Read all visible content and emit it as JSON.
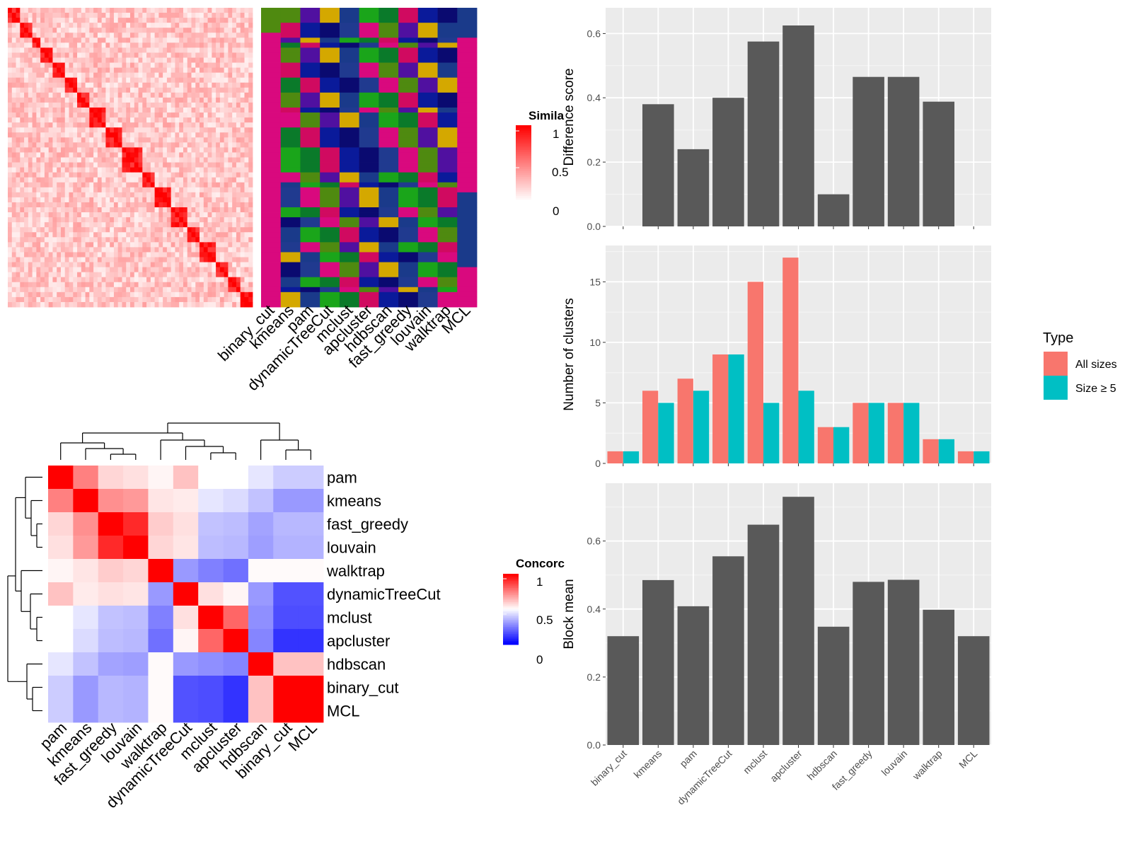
{
  "methods": [
    "binary_cut",
    "kmeans",
    "pam",
    "dynamicTreeCut",
    "mclust",
    "apcluster",
    "hdbscan",
    "fast_greedy",
    "louvain",
    "walktrap",
    "MCL"
  ],
  "similarity_legend": {
    "title": "Simila",
    "ticks": [
      "1",
      "0.5",
      "0"
    ]
  },
  "concordance_legend": {
    "title": "Concorc",
    "ticks": [
      "1",
      "0.5",
      "0"
    ]
  },
  "type_legend": {
    "title": "Type",
    "items": [
      {
        "label": "All sizes",
        "color": "#F8766D"
      },
      {
        "label": "Size ≥ 5",
        "color": "#00BFC4"
      }
    ]
  },
  "colors": {
    "bar": "#595959",
    "panel": "#ebebeb",
    "grid": "#ffffff",
    "all_sizes": "#F8766D",
    "size_ge5": "#00BFC4",
    "magenta": "#d9097e",
    "navy": "#1a3a8a",
    "green": "#4f8a10"
  },
  "chart_data": [
    {
      "type": "heatmap",
      "name": "similarity-heatmap",
      "n_rows": 60,
      "n_cols": 60,
      "diagonal_value": 1,
      "value_range": [
        0,
        1
      ]
    },
    {
      "type": "heatmap",
      "name": "cluster-assignment-heatmap",
      "columns": [
        "binary_cut",
        "kmeans",
        "pam",
        "dynamicTreeCut",
        "mclust",
        "apcluster",
        "hdbscan",
        "fast_greedy",
        "louvain",
        "walktrap",
        "MCL"
      ],
      "n_rows": 60
    },
    {
      "type": "bar",
      "name": "difference-score",
      "categories": [
        "binary_cut",
        "kmeans",
        "pam",
        "dynamicTreeCut",
        "mclust",
        "apcluster",
        "hdbscan",
        "fast_greedy",
        "louvain",
        "walktrap",
        "MCL"
      ],
      "values": [
        0,
        0.38,
        0.24,
        0.4,
        0.575,
        0.625,
        0.1,
        0.465,
        0.465,
        0.388,
        0
      ],
      "ylabel": "Difference score",
      "ylim": [
        0,
        0.68
      ],
      "yticks": [
        0,
        0.2,
        0.4,
        0.6
      ],
      "yticklabels": [
        "0.0",
        "0.2",
        "0.4",
        "0.6"
      ]
    },
    {
      "type": "bar",
      "name": "number-of-clusters",
      "categories": [
        "binary_cut",
        "kmeans",
        "pam",
        "dynamicTreeCut",
        "mclust",
        "apcluster",
        "hdbscan",
        "fast_greedy",
        "louvain",
        "walktrap",
        "MCL"
      ],
      "series": [
        {
          "name": "All sizes",
          "values": [
            1,
            6,
            7,
            9,
            15,
            17,
            3,
            5,
            5,
            2,
            1
          ]
        },
        {
          "name": "Size ≥ 5",
          "values": [
            1,
            5,
            6,
            9,
            5,
            6,
            3,
            5,
            5,
            2,
            1
          ]
        }
      ],
      "ylabel": "Number of clusters",
      "ylim": [
        0,
        18
      ],
      "yticks": [
        0,
        5,
        10,
        15
      ],
      "yticklabels": [
        "0",
        "5",
        "10",
        "15"
      ]
    },
    {
      "type": "bar",
      "name": "block-mean",
      "categories": [
        "binary_cut",
        "kmeans",
        "pam",
        "dynamicTreeCut",
        "mclust",
        "apcluster",
        "hdbscan",
        "fast_greedy",
        "louvain",
        "walktrap",
        "MCL"
      ],
      "values": [
        0.32,
        0.485,
        0.408,
        0.555,
        0.648,
        0.73,
        0.348,
        0.48,
        0.486,
        0.398,
        0.32
      ],
      "ylabel": "Block mean",
      "ylim": [
        0,
        0.77
      ],
      "yticks": [
        0,
        0.2,
        0.4,
        0.6
      ],
      "yticklabels": [
        "0.0",
        "0.2",
        "0.4",
        "0.6"
      ]
    },
    {
      "type": "heatmap",
      "name": "concordance-heatmap",
      "labels": [
        "pam",
        "kmeans",
        "fast_greedy",
        "louvain",
        "walktrap",
        "dynamicTreeCut",
        "mclust",
        "apcluster",
        "hdbscan",
        "binary_cut",
        "MCL"
      ],
      "value_range": [
        0,
        1
      ],
      "values": [
        [
          1.0,
          0.75,
          0.58,
          0.56,
          0.52,
          0.62,
          0.5,
          0.5,
          0.45,
          0.4,
          0.4
        ],
        [
          0.75,
          1.0,
          0.72,
          0.7,
          0.55,
          0.54,
          0.45,
          0.43,
          0.38,
          0.3,
          0.3
        ],
        [
          0.58,
          0.72,
          1.0,
          0.92,
          0.6,
          0.56,
          0.38,
          0.37,
          0.32,
          0.36,
          0.36
        ],
        [
          0.56,
          0.7,
          0.92,
          1.0,
          0.58,
          0.55,
          0.37,
          0.36,
          0.31,
          0.35,
          0.35
        ],
        [
          0.52,
          0.55,
          0.6,
          0.58,
          1.0,
          0.3,
          0.25,
          0.22,
          0.51,
          0.51,
          0.51
        ],
        [
          0.62,
          0.54,
          0.56,
          0.55,
          0.3,
          1.0,
          0.56,
          0.52,
          0.3,
          0.16,
          0.16
        ],
        [
          0.5,
          0.45,
          0.38,
          0.37,
          0.25,
          0.56,
          1.0,
          0.8,
          0.28,
          0.15,
          0.15
        ],
        [
          0.5,
          0.43,
          0.37,
          0.36,
          0.22,
          0.52,
          0.8,
          1.0,
          0.26,
          0.1,
          0.1
        ],
        [
          0.45,
          0.38,
          0.32,
          0.31,
          0.51,
          0.3,
          0.28,
          0.26,
          1.0,
          0.62,
          0.62
        ],
        [
          0.4,
          0.3,
          0.36,
          0.35,
          0.51,
          0.16,
          0.15,
          0.1,
          0.62,
          1.0,
          1.0
        ],
        [
          0.4,
          0.3,
          0.36,
          0.35,
          0.51,
          0.16,
          0.15,
          0.1,
          0.62,
          1.0,
          1.0
        ]
      ]
    }
  ]
}
